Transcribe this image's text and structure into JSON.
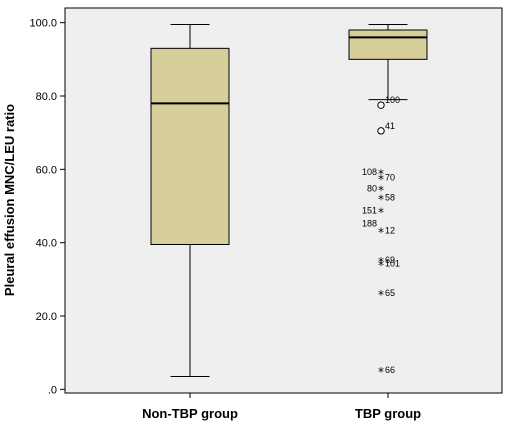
{
  "chart_data": {
    "type": "boxplot",
    "ylabel": "Pleural effusion MNC/LEU ratio",
    "xlabel": "",
    "ylim": [
      -1,
      104
    ],
    "grid": false,
    "yticks": [
      0,
      20,
      40,
      60,
      80,
      100
    ],
    "ytick_labels": [
      ".0",
      "20.0",
      "40.0",
      "60.0",
      "80.0",
      "100.0"
    ],
    "colors": {
      "box_fill": "#d6cf9b",
      "plot_bg": "#efefef",
      "line": "#000000"
    },
    "categories": [
      "Non-TBP group",
      "TBP group"
    ],
    "boxes": [
      {
        "category": "Non-TBP group",
        "whisker_low": 3.5,
        "q1": 39.5,
        "median": 78.0,
        "q3": 93.0,
        "whisker_high": 99.5,
        "outliers": []
      },
      {
        "category": "TBP group",
        "whisker_low": 79.0,
        "q1": 90.0,
        "median": 96.0,
        "q3": 98.0,
        "whisker_high": 99.5,
        "outliers": [
          {
            "label": "100",
            "value": 77.5,
            "kind": "mild"
          },
          {
            "label": "41",
            "value": 70.5,
            "kind": "mild"
          },
          {
            "label": "108",
            "value": 59.0,
            "kind": "extreme",
            "side": "left"
          },
          {
            "label": "70",
            "value": 57.5,
            "kind": "extreme",
            "side": "right"
          },
          {
            "label": "80",
            "value": 54.5,
            "kind": "extreme",
            "side": "left"
          },
          {
            "label": "58",
            "value": 52.0,
            "kind": "extreme",
            "side": "right"
          },
          {
            "label": "151",
            "value": 48.5,
            "kind": "extreme",
            "side": "left"
          },
          {
            "label": "188",
            "value": 45.0,
            "kind": "none",
            "side": "left"
          },
          {
            "label": "12",
            "value": 43.0,
            "kind": "extreme",
            "side": "right"
          },
          {
            "label": "69",
            "value": 35.0,
            "kind": "extreme",
            "side": "right"
          },
          {
            "label": "101",
            "value": 34.0,
            "kind": "extreme",
            "side": "right"
          },
          {
            "label": "65",
            "value": 26.0,
            "kind": "extreme",
            "side": "right"
          },
          {
            "label": "66",
            "value": 5.0,
            "kind": "extreme",
            "side": "right"
          }
        ]
      }
    ]
  }
}
